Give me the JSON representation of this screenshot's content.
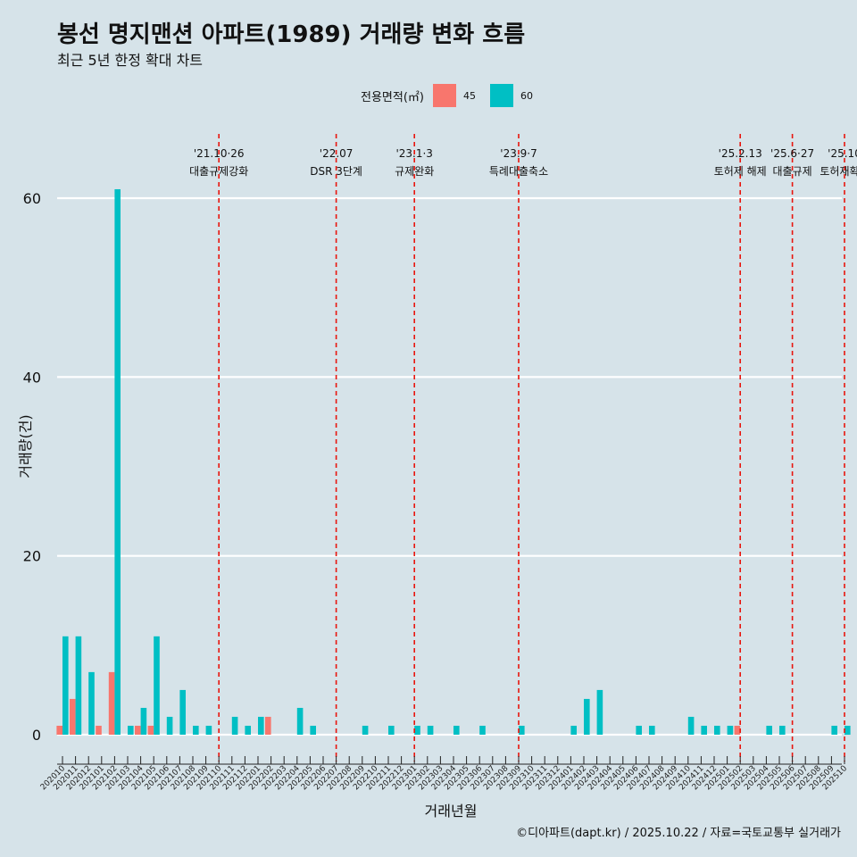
{
  "title": "봉선 명지맨션 아파트(1989) 거래량 변화 흐름",
  "subtitle": "최근 5년 한정 확대 차트",
  "caption": "©디아파트(dapt.kr) / 2025.10.22 / 자료=국토교통부 실거래가",
  "legend": {
    "title": "전용면적(㎡)",
    "items": [
      {
        "label": "45",
        "color": "#f8766d"
      },
      {
        "label": "60",
        "color": "#00bfc4"
      }
    ]
  },
  "chart_data": {
    "type": "bar",
    "title": "봉선 명지맨션 아파트(1989) 거래량 변화 흐름",
    "xlabel": "거래년월",
    "ylabel": "거래량(건)",
    "ylim": [
      0,
      66
    ],
    "yticks": [
      0,
      20,
      40,
      60
    ],
    "categories": [
      "202010",
      "202011",
      "202012",
      "202101",
      "202102",
      "202103",
      "202104",
      "202105",
      "202106",
      "202107",
      "202108",
      "202109",
      "202110",
      "202111",
      "202112",
      "202201",
      "202202",
      "202203",
      "202204",
      "202205",
      "202206",
      "202207",
      "202208",
      "202209",
      "202210",
      "202211",
      "202212",
      "202301",
      "202302",
      "202303",
      "202304",
      "202305",
      "202306",
      "202307",
      "202308",
      "202309",
      "202310",
      "202311",
      "202312",
      "202401",
      "202402",
      "202403",
      "202404",
      "202405",
      "202406",
      "202407",
      "202408",
      "202409",
      "202410",
      "202411",
      "202412",
      "202501",
      "202502",
      "202503",
      "202504",
      "202505",
      "202506",
      "202507",
      "202508",
      "202509",
      "202510"
    ],
    "series": [
      {
        "name": "45",
        "color": "#f8766d",
        "values": [
          1,
          4,
          0,
          1,
          7,
          0,
          1,
          1,
          0,
          0,
          0,
          0,
          0,
          0,
          0,
          0,
          2,
          0,
          0,
          0,
          0,
          0,
          0,
          0,
          0,
          0,
          0,
          0,
          0,
          0,
          0,
          0,
          0,
          0,
          0,
          0,
          0,
          0,
          0,
          0,
          0,
          0,
          0,
          0,
          0,
          0,
          0,
          0,
          0,
          0,
          0,
          0,
          1,
          0,
          0,
          0,
          0,
          0,
          0,
          0,
          0
        ]
      },
      {
        "name": "60",
        "color": "#00bfc4",
        "values": [
          11,
          11,
          7,
          0,
          61,
          1,
          3,
          11,
          2,
          5,
          1,
          1,
          0,
          2,
          1,
          2,
          0,
          0,
          3,
          1,
          0,
          0,
          0,
          1,
          0,
          1,
          0,
          1,
          1,
          0,
          1,
          0,
          1,
          0,
          0,
          1,
          0,
          0,
          0,
          1,
          4,
          5,
          0,
          0,
          1,
          1,
          0,
          0,
          2,
          1,
          1,
          1,
          0,
          0,
          1,
          1,
          0,
          0,
          0,
          1,
          1
        ]
      }
    ],
    "annotations": [
      {
        "x": "202110",
        "date": "'21.10·26",
        "label": "대출규제강화"
      },
      {
        "x": "202207",
        "date": "'22.07",
        "label": "DSR 3단계"
      },
      {
        "x": "202301",
        "date": "'23.1·3",
        "label": "규제완화"
      },
      {
        "x": "202309",
        "date": "'23.9·7",
        "label": "특례대출축소"
      },
      {
        "x": "202502",
        "date": "'25.2.13",
        "label": "토허제 해제"
      },
      {
        "x": "202506",
        "date": "'25.6·27",
        "label": "대출규제"
      },
      {
        "x": "202510",
        "date": "'25.10",
        "label": "토허재확대"
      }
    ]
  }
}
